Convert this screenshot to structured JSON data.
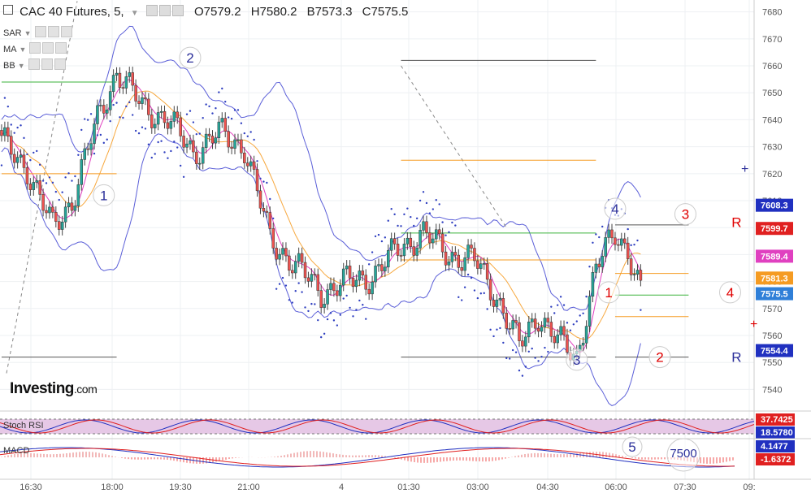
{
  "header": {
    "symbol": "CAC 40 Futures",
    "interval": "5",
    "open": "O7579.2",
    "high": "H7580.2",
    "bid": "B7573.3",
    "close": "C7575.5"
  },
  "indicators": [
    "SAR",
    "MA",
    "BB"
  ],
  "logo": {
    "name": "Investing",
    "domain": ".com"
  },
  "colors": {
    "up": "#26a69a",
    "down": "#ef5350",
    "bb": "#5b5fd8",
    "ma_fast": "#e040c0",
    "ma_slow": "#f7a83e",
    "sar": "#3040c0",
    "green_level": "#3bb33b",
    "orange_level": "#f59b22",
    "gray_level": "#555555",
    "stoch_bg": "#e6c8e6",
    "label_blue": "#2b2f9a",
    "label_red": "#e00000"
  },
  "chart_data": {
    "type": "candlestick",
    "x_ticks": [
      "16:30",
      "18:00",
      "19:30",
      "21:00",
      "4",
      "01:30",
      "03:00",
      "04:30",
      "06:00",
      "07:30",
      "09:"
    ],
    "y_ticks": [
      7540,
      7550,
      7560,
      7570,
      7580,
      7590,
      7600,
      7610,
      7620,
      7630,
      7640,
      7650,
      7660,
      7670,
      7680
    ],
    "ylim": [
      7535,
      7682
    ],
    "anchors": [
      {
        "i": 0,
        "p": 7632
      },
      {
        "i": 8,
        "p": 7622
      },
      {
        "i": 16,
        "p": 7600
      },
      {
        "i": 22,
        "p": 7610
      },
      {
        "i": 30,
        "p": 7640
      },
      {
        "i": 36,
        "p": 7658
      },
      {
        "i": 44,
        "p": 7645
      },
      {
        "i": 52,
        "p": 7640
      },
      {
        "i": 60,
        "p": 7628
      },
      {
        "i": 68,
        "p": 7635
      },
      {
        "i": 76,
        "p": 7630
      },
      {
        "i": 84,
        "p": 7596
      },
      {
        "i": 92,
        "p": 7586
      },
      {
        "i": 100,
        "p": 7576
      },
      {
        "i": 108,
        "p": 7580
      },
      {
        "i": 116,
        "p": 7582
      },
      {
        "i": 124,
        "p": 7592
      },
      {
        "i": 132,
        "p": 7598
      },
      {
        "i": 140,
        "p": 7590
      },
      {
        "i": 148,
        "p": 7588
      },
      {
        "i": 156,
        "p": 7572
      },
      {
        "i": 162,
        "p": 7556
      },
      {
        "i": 168,
        "p": 7568
      },
      {
        "i": 174,
        "p": 7558
      },
      {
        "i": 180,
        "p": 7552
      },
      {
        "i": 186,
        "p": 7585
      },
      {
        "i": 192,
        "p": 7598
      },
      {
        "i": 196,
        "p": 7592
      },
      {
        "i": 200,
        "p": 7576
      }
    ],
    "price_labels": [
      {
        "text": "7608.3",
        "value": 7608.3,
        "color": "#2030c0"
      },
      {
        "text": "7599.7",
        "value": 7599.7,
        "color": "#e02020"
      },
      {
        "text": "7589.4",
        "value": 7589.4,
        "color": "#e040c0"
      },
      {
        "text": "7581.3",
        "value": 7581.3,
        "color": "#f59b22"
      },
      {
        "text": "7575.5",
        "value": 7575.5,
        "color": "#2f7fd8"
      },
      {
        "text": "7554.4",
        "value": 7554.4,
        "color": "#2030c0"
      }
    ],
    "levels": [
      {
        "value": 7654,
        "from": 0,
        "to": 36,
        "color": "#3bb33b"
      },
      {
        "value": 7620,
        "from": 0,
        "to": 36,
        "color": "#f59b22"
      },
      {
        "value": 7552,
        "from": 0,
        "to": 36,
        "color": "#555555"
      },
      {
        "value": 7662,
        "from": 125,
        "to": 186,
        "color": "#555555"
      },
      {
        "value": 7625,
        "from": 125,
        "to": 186,
        "color": "#f59b22"
      },
      {
        "value": 7598,
        "from": 125,
        "to": 186,
        "color": "#3bb33b"
      },
      {
        "value": 7588,
        "from": 125,
        "to": 186,
        "color": "#f59b22"
      },
      {
        "value": 7552,
        "from": 125,
        "to": 186,
        "color": "#555555"
      },
      {
        "value": 7601,
        "from": 192,
        "to": 215,
        "color": "#555555"
      },
      {
        "value": 7583,
        "from": 192,
        "to": 215,
        "color": "#f59b22"
      },
      {
        "value": 7575,
        "from": 192,
        "to": 215,
        "color": "#3bb33b"
      },
      {
        "value": 7567,
        "from": 192,
        "to": 215,
        "color": "#f59b22"
      },
      {
        "value": 7552,
        "from": 192,
        "to": 215,
        "color": "#555555"
      }
    ],
    "wave_labels": [
      {
        "text": "1",
        "i": 32,
        "v": 7612,
        "color": "#2b2f9a",
        "circle": true
      },
      {
        "text": "2",
        "i": 59,
        "v": 7663,
        "color": "#2b2f9a",
        "circle": true
      },
      {
        "text": "3",
        "i": 180,
        "v": 7551,
        "color": "#2b2f9a",
        "circle": true
      },
      {
        "text": "4",
        "i": 192,
        "v": 7607,
        "color": "#2b2f9a",
        "circle": true
      },
      {
        "text": "1",
        "i": 190,
        "v": 7576,
        "color": "#e00000",
        "circle": true
      },
      {
        "text": "2",
        "i": 206,
        "v": 7552,
        "color": "#e00000",
        "circle": true
      },
      {
        "text": "3",
        "i": 214,
        "v": 7605,
        "color": "#e00000",
        "circle": true
      },
      {
        "text": "4",
        "i": 228,
        "v": 7576,
        "color": "#e00000",
        "circle": true
      },
      {
        "text": "R",
        "i": 230,
        "v": 7602,
        "color": "#e00000",
        "circle": false
      },
      {
        "text": "R",
        "i": 230,
        "v": 7552,
        "color": "#2b2f9a",
        "circle": false
      }
    ],
    "stoch": {
      "label": "Stoch RSI",
      "values": [
        "37.7425",
        "18.5780"
      ],
      "colors": [
        "#e02020",
        "#2030c0"
      ]
    },
    "macd": {
      "label": "MACD",
      "values": [
        "4.1477",
        "-1.6372"
      ],
      "colors": [
        "#2030c0",
        "#e02020"
      ],
      "wave_labels": [
        {
          "text": "5",
          "color": "#2b2f9a"
        },
        {
          "text": "7500",
          "color": "#2b2f9a"
        }
      ]
    }
  }
}
